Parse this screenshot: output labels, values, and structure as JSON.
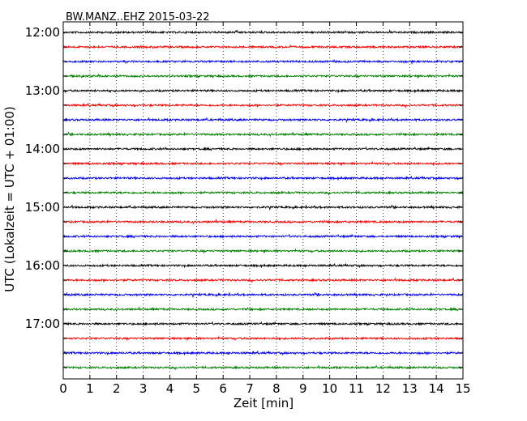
{
  "chart_data": {
    "type": "line",
    "title": "BW.MANZ..EHZ 2015-03-22",
    "xlabel": "Zeit  [min]",
    "ylabel": "UTC (Lokalzeit = UTC + 01:00)",
    "xlim": [
      0,
      15
    ],
    "x_ticks": [
      "0",
      "1",
      "2",
      "3",
      "4",
      "5",
      "6",
      "7",
      "8",
      "9",
      "10",
      "11",
      "12",
      "13",
      "14",
      "15"
    ],
    "y_ticks": [
      "12:00",
      "13:00",
      "14:00",
      "15:00",
      "16:00",
      "17:00"
    ],
    "trace_start_times": [
      "12:00",
      "12:15",
      "12:30",
      "12:45",
      "13:00",
      "13:15",
      "13:30",
      "13:45",
      "14:00",
      "14:15",
      "14:30",
      "14:45",
      "15:00",
      "15:15",
      "15:30",
      "15:45",
      "16:00",
      "16:15",
      "16:30",
      "16:45",
      "17:00",
      "17:15",
      "17:30",
      "17:45"
    ],
    "trace_interval_min": 15,
    "color_cycle": [
      "#000000",
      "#ff0000",
      "#0000ff",
      "#008000"
    ],
    "grid_x": "dotted",
    "legend": "none"
  }
}
